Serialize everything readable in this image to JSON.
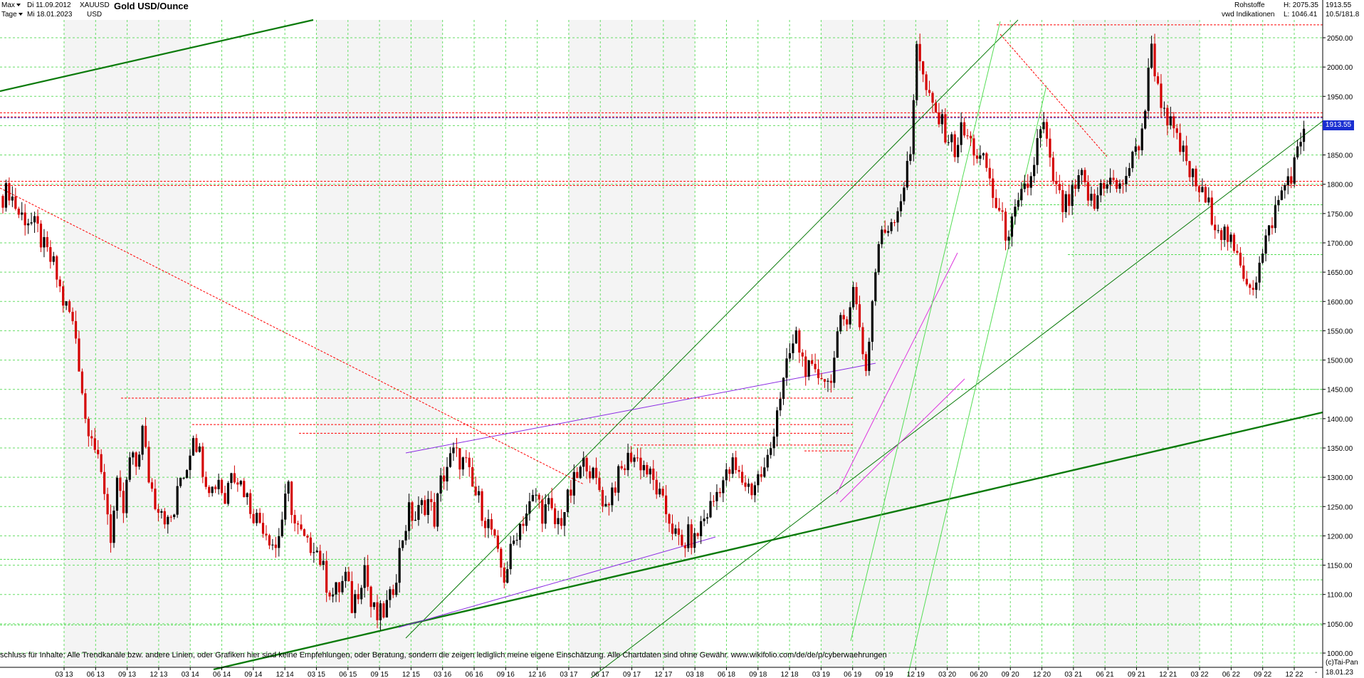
{
  "header": {
    "range_selector": "Max",
    "interval_selector": "Tage",
    "date_from": "Di 11.09.2012",
    "date_to": "Mi 18.01.2023",
    "symbol": "XAUUSD",
    "currency": "USD",
    "title": "Gold USD/Ounce",
    "category": "Rohstoffe",
    "source": "vwd Indikationen",
    "high": "H: 2075.35",
    "low": "L: 1046.41",
    "last": "1913.55",
    "scale_info": "10.5/181.8"
  },
  "price_tag": "1913.55",
  "bottom_right_date": "18.01.23",
  "bottom_right_dash": "-",
  "copyright": "(c)Tai-Pan",
  "disclaimer": "schluss für Inhalte: Alle Trendkanäle bzw. andere Linien, oder Grafiken hier sind keine Empfehlungen, oder Beratung, sondern die zeigen lediglich meine eigene Einschätzung. Alle Chartdaten sind ohne Gewähr.  www.wikifolio.com/de/de/p/cyberwaehrungen",
  "colors": {
    "candle_up": "#000000",
    "candle_down": "#d40000",
    "grid": "#66dd66",
    "resistance": "#ff0000",
    "trend_green": "#0a7a0a",
    "trend_light": "#55dd55",
    "trend_purple": "#8a2be2",
    "trend_magenta": "#dd33dd",
    "price_line": "#1a2fd1"
  },
  "chart_data": {
    "type": "candlestick",
    "title": "Gold USD/Ounce",
    "ylim": [
      990,
      2100
    ],
    "y_ticks": [
      1000,
      1050,
      1100,
      1150,
      1200,
      1250,
      1300,
      1350,
      1400,
      1450,
      1500,
      1550,
      1600,
      1650,
      1700,
      1750,
      1800,
      1850,
      1900,
      1950,
      2000,
      2050
    ],
    "x_ticks": [
      "03 13",
      "06 13",
      "09 13",
      "12 13",
      "03 14",
      "06 14",
      "09 14",
      "12 14",
      "03 15",
      "06 15",
      "09 15",
      "12 15",
      "03 16",
      "06 16",
      "09 16",
      "12 16",
      "03 17",
      "06 17",
      "09 17",
      "12 17",
      "03 18",
      "06 18",
      "09 18",
      "12 18",
      "03 19",
      "06 19",
      "09 19",
      "12 19",
      "03 20",
      "06 20",
      "09 20",
      "12 20",
      "03 21",
      "06 21",
      "09 21",
      "12 21",
      "03 22",
      "06 22",
      "09 22",
      "12 22"
    ],
    "grid": true,
    "series": [
      {
        "points": [
          [
            0,
            1780
          ],
          [
            2,
            1790
          ],
          [
            5,
            1750
          ],
          [
            8,
            1740
          ],
          [
            11,
            1720
          ],
          [
            13,
            1690
          ],
          [
            16,
            1660
          ],
          [
            19,
            1600
          ],
          [
            21,
            1580
          ],
          [
            23,
            1540
          ],
          [
            25,
            1450
          ],
          [
            26,
            1400
          ],
          [
            28,
            1380
          ],
          [
            30,
            1320
          ],
          [
            32,
            1280
          ],
          [
            34,
            1200
          ],
          [
            36,
            1280
          ],
          [
            38,
            1240
          ],
          [
            40,
            1330
          ],
          [
            42,
            1320
          ],
          [
            44,
            1380
          ],
          [
            46,
            1300
          ],
          [
            48,
            1260
          ],
          [
            50,
            1250
          ],
          [
            52,
            1220
          ],
          [
            54,
            1240
          ],
          [
            56,
            1300
          ],
          [
            58,
            1320
          ],
          [
            60,
            1380
          ],
          [
            62,
            1340
          ],
          [
            64,
            1300
          ],
          [
            66,
            1280
          ],
          [
            68,
            1300
          ],
          [
            70,
            1260
          ],
          [
            72,
            1320
          ],
          [
            74,
            1300
          ],
          [
            76,
            1280
          ],
          [
            78,
            1250
          ],
          [
            80,
            1230
          ],
          [
            82,
            1220
          ],
          [
            84,
            1200
          ],
          [
            86,
            1180
          ],
          [
            88,
            1230
          ],
          [
            90,
            1280
          ],
          [
            92,
            1220
          ],
          [
            94,
            1200
          ],
          [
            96,
            1180
          ],
          [
            98,
            1190
          ],
          [
            100,
            1160
          ],
          [
            102,
            1120
          ],
          [
            104,
            1100
          ],
          [
            106,
            1110
          ],
          [
            108,
            1130
          ],
          [
            110,
            1080
          ],
          [
            112,
            1110
          ],
          [
            114,
            1150
          ],
          [
            116,
            1080
          ],
          [
            118,
            1060
          ],
          [
            120,
            1070
          ],
          [
            122,
            1090
          ],
          [
            124,
            1140
          ],
          [
            126,
            1200
          ],
          [
            128,
            1240
          ],
          [
            130,
            1230
          ],
          [
            132,
            1250
          ],
          [
            134,
            1260
          ],
          [
            136,
            1230
          ],
          [
            138,
            1290
          ],
          [
            140,
            1320
          ],
          [
            142,
            1340
          ],
          [
            144,
            1330
          ],
          [
            146,
            1320
          ],
          [
            148,
            1280
          ],
          [
            150,
            1260
          ],
          [
            152,
            1230
          ],
          [
            154,
            1210
          ],
          [
            156,
            1160
          ],
          [
            158,
            1130
          ],
          [
            160,
            1170
          ],
          [
            162,
            1210
          ],
          [
            164,
            1230
          ],
          [
            166,
            1250
          ],
          [
            168,
            1270
          ],
          [
            170,
            1240
          ],
          [
            172,
            1250
          ],
          [
            174,
            1220
          ],
          [
            176,
            1230
          ],
          [
            178,
            1260
          ],
          [
            180,
            1290
          ],
          [
            182,
            1310
          ],
          [
            184,
            1330
          ],
          [
            186,
            1300
          ],
          [
            188,
            1280
          ],
          [
            190,
            1250
          ],
          [
            192,
            1280
          ],
          [
            194,
            1300
          ],
          [
            196,
            1320
          ],
          [
            198,
            1340
          ],
          [
            200,
            1330
          ],
          [
            202,
            1320
          ],
          [
            204,
            1300
          ],
          [
            206,
            1280
          ],
          [
            208,
            1250
          ],
          [
            210,
            1230
          ],
          [
            212,
            1200
          ],
          [
            214,
            1180
          ],
          [
            216,
            1200
          ],
          [
            218,
            1190
          ],
          [
            220,
            1220
          ],
          [
            222,
            1240
          ],
          [
            224,
            1260
          ],
          [
            226,
            1290
          ],
          [
            228,
            1300
          ],
          [
            230,
            1320
          ],
          [
            232,
            1300
          ],
          [
            234,
            1290
          ],
          [
            236,
            1280
          ],
          [
            238,
            1300
          ],
          [
            240,
            1310
          ],
          [
            242,
            1350
          ],
          [
            244,
            1420
          ],
          [
            246,
            1460
          ],
          [
            248,
            1510
          ],
          [
            250,
            1540
          ],
          [
            252,
            1500
          ],
          [
            254,
            1480
          ],
          [
            256,
            1470
          ],
          [
            258,
            1480
          ],
          [
            260,
            1460
          ],
          [
            262,
            1500
          ],
          [
            264,
            1560
          ],
          [
            266,
            1580
          ],
          [
            268,
            1620
          ],
          [
            270,
            1560
          ],
          [
            272,
            1480
          ],
          [
            274,
            1600
          ],
          [
            276,
            1700
          ],
          [
            278,
            1720
          ],
          [
            280,
            1740
          ],
          [
            282,
            1760
          ],
          [
            284,
            1800
          ],
          [
            286,
            1850
          ],
          [
            288,
            2050
          ],
          [
            290,
            1980
          ],
          [
            292,
            1940
          ],
          [
            294,
            1920
          ],
          [
            296,
            1900
          ],
          [
            298,
            1880
          ],
          [
            300,
            1860
          ],
          [
            302,
            1890
          ],
          [
            304,
            1880
          ],
          [
            306,
            1860
          ],
          [
            308,
            1840
          ],
          [
            310,
            1830
          ],
          [
            312,
            1780
          ],
          [
            314,
            1750
          ],
          [
            316,
            1720
          ],
          [
            318,
            1730
          ],
          [
            320,
            1760
          ],
          [
            322,
            1790
          ],
          [
            324,
            1810
          ],
          [
            326,
            1870
          ],
          [
            328,
            1900
          ],
          [
            330,
            1830
          ],
          [
            332,
            1790
          ],
          [
            334,
            1760
          ],
          [
            336,
            1770
          ],
          [
            338,
            1790
          ],
          [
            340,
            1810
          ],
          [
            342,
            1780
          ],
          [
            344,
            1760
          ],
          [
            346,
            1800
          ],
          [
            348,
            1810
          ],
          [
            350,
            1800
          ],
          [
            352,
            1790
          ],
          [
            354,
            1820
          ],
          [
            356,
            1840
          ],
          [
            358,
            1870
          ],
          [
            360,
            1930
          ],
          [
            362,
            2040
          ],
          [
            364,
            1960
          ],
          [
            366,
            1930
          ],
          [
            368,
            1900
          ],
          [
            370,
            1870
          ],
          [
            372,
            1850
          ],
          [
            374,
            1820
          ],
          [
            376,
            1800
          ],
          [
            378,
            1780
          ],
          [
            380,
            1760
          ],
          [
            382,
            1740
          ],
          [
            384,
            1720
          ],
          [
            386,
            1710
          ],
          [
            388,
            1680
          ],
          [
            390,
            1660
          ],
          [
            392,
            1640
          ],
          [
            394,
            1630
          ],
          [
            396,
            1660
          ],
          [
            398,
            1700
          ],
          [
            400,
            1740
          ],
          [
            402,
            1770
          ],
          [
            404,
            1800
          ],
          [
            406,
            1820
          ],
          [
            408,
            1850
          ],
          [
            410,
            1900
          ],
          [
            411,
            1913.55
          ]
        ]
      }
    ]
  }
}
